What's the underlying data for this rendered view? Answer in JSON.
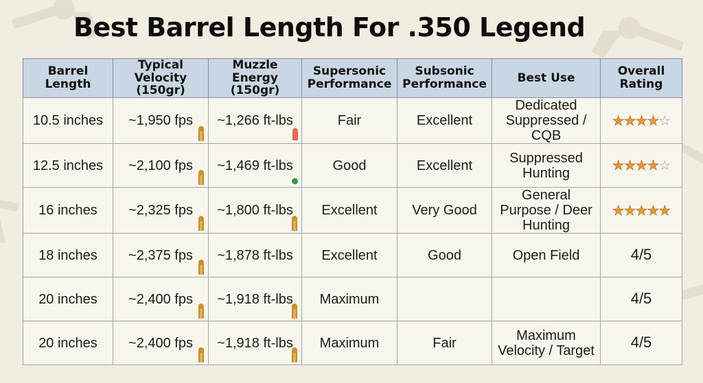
{
  "title": "Best Barrel Length For .350 Legend",
  "colors": {
    "background": "#f2ede1",
    "header_fill": "#c9d6e3",
    "grid": "#9aa7b3",
    "star": "#e39a3a",
    "cartridge": "#c9922f"
  },
  "table": {
    "headers": [
      "Barrel Length",
      "Typical Velocity (150gr)",
      "Muzzle Energy (150gr)",
      "Supersonic Performance",
      "Subsonic Performance",
      "Best Use",
      "Overall Rating"
    ],
    "rows": [
      {
        "barrel": "10.5 inches",
        "velocity": "~1,950 fps",
        "energy": "~1,266 ft-lbs",
        "supersonic": "Fair",
        "subsonic": "Excellent",
        "best_use": "Dedicated Suppressed / CQB",
        "rating": 4,
        "rating_style": "stars",
        "velocity_icon": "cartridge-icon",
        "energy_icon": "red-bullet-icon"
      },
      {
        "barrel": "12.5 inches",
        "velocity": "~2,100 fps",
        "energy": "~1,469 ft-lbs",
        "supersonic": "Good",
        "subsonic": "Excellent",
        "best_use": "Suppressed Hunting",
        "rating": 4,
        "rating_style": "stars",
        "velocity_icon": "cartridge-icon",
        "energy_icon": "green-dot-icon"
      },
      {
        "barrel": "16 inches",
        "velocity": "~2,325 fps",
        "energy": "~1,800 ft-lbs",
        "supersonic": "Excellent",
        "subsonic": "Very Good",
        "best_use": "General Purpose / Deer Hunting",
        "rating": 5,
        "rating_style": "stars",
        "velocity_icon": "cartridge-icon",
        "energy_icon": "cartridge-icon"
      },
      {
        "barrel": "18 inches",
        "velocity": "~2,375 fps",
        "energy": "~1,878 ft-lbs",
        "supersonic": "Excellent",
        "subsonic": "Good",
        "best_use": "Open Field",
        "rating": "4/5",
        "rating_style": "text",
        "velocity_icon": "cartridge-icon",
        "energy_icon": ""
      },
      {
        "barrel": "20 inches",
        "velocity": "~2,400 fps",
        "energy": "~1,918 ft-lbs",
        "supersonic": "Maximum",
        "subsonic": "",
        "best_use": "",
        "rating": "4/5",
        "rating_style": "text",
        "velocity_icon": "cartridge-icon",
        "energy_icon": "cartridge-icon"
      },
      {
        "barrel": "20 inches",
        "velocity": "~2,400 fps",
        "energy": "~1,918 ft-lbs",
        "supersonic": "Maximum",
        "subsonic": "Fair",
        "best_use": "Maximum Velocity / Target",
        "rating": "4/5",
        "rating_style": "text",
        "velocity_icon": "cartridge-icon",
        "energy_icon": "cartridge-icon"
      }
    ]
  }
}
